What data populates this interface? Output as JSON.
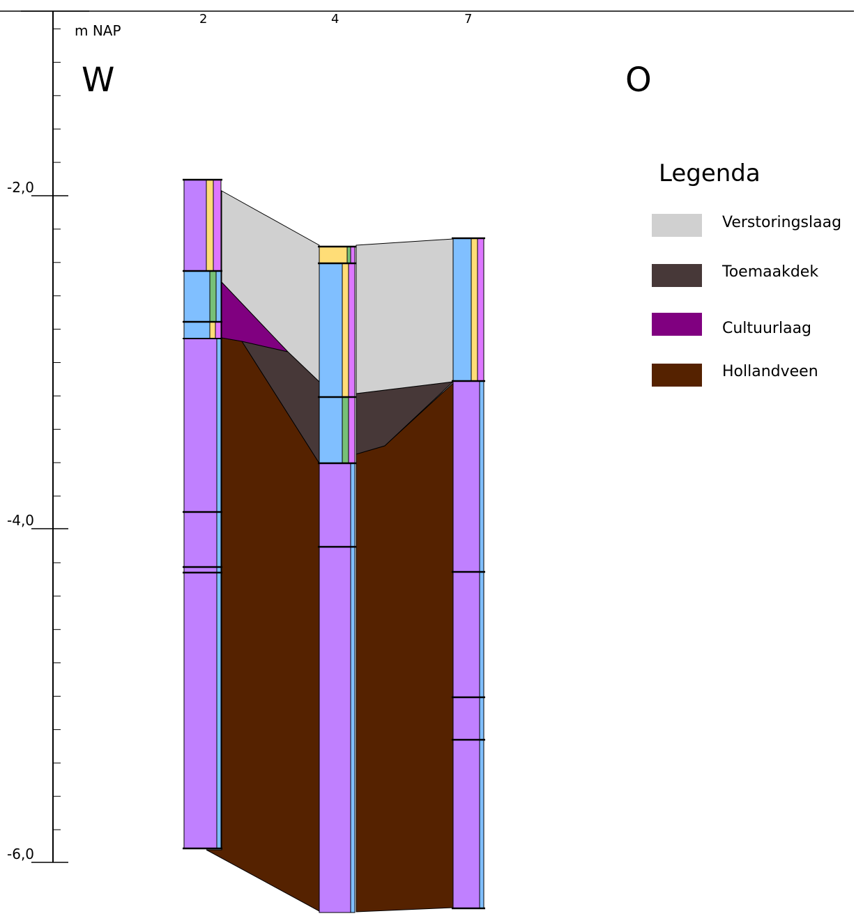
{
  "axis": {
    "unit": "m NAP",
    "tick_labels": [
      "-2,0",
      "-4,0",
      "-6,0"
    ]
  },
  "directions": {
    "west": "W",
    "east": "O"
  },
  "boreholes": [
    "2",
    "4",
    "7"
  ],
  "legend": {
    "title": "Legenda",
    "items": [
      {
        "label": "Verstoringslaag",
        "color": "#d0d0d0"
      },
      {
        "label": "Toemaakdek",
        "color": "#473838"
      },
      {
        "label": "Cultuurlaag",
        "color": "#800080"
      },
      {
        "label": "Hollandveen",
        "color": "#552200"
      }
    ]
  },
  "column_colors": {
    "clay": "#c080ff",
    "sand": "#80bfff",
    "yellow": "#ffdd77",
    "green": "#77c077",
    "pink": "#dd77ff"
  }
}
